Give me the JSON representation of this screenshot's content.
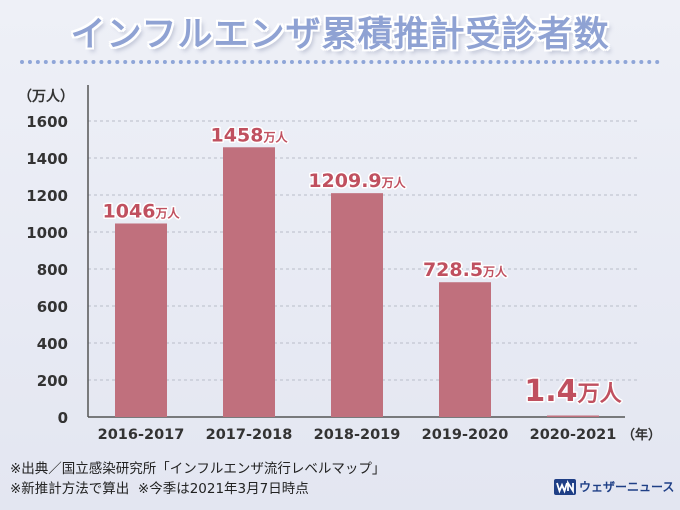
{
  "title": "インフルエンザ累積推計受診者数",
  "chart_data": {
    "type": "bar",
    "unit_label": "（万人）",
    "x_unit_label": "（年）",
    "categories": [
      "2016-2017",
      "2017-2018",
      "2018-2019",
      "2019-2020",
      "2020-2021"
    ],
    "values": [
      1046,
      1458,
      1209.9,
      728.5,
      1.4
    ],
    "value_labels": [
      "1046",
      "1458",
      "1209.9",
      "728.5",
      "1.4"
    ],
    "value_suffix": "万人",
    "ylim": [
      0,
      1600
    ],
    "yticks": [
      0,
      200,
      400,
      600,
      800,
      1000,
      1200,
      1400,
      1600
    ],
    "grid": true,
    "bar_color": "#c0707d",
    "label_color": "#c0505f"
  },
  "notes": {
    "line1": "※出典／国立感染研究所「インフルエンザ流行レベルマップ」",
    "line2": "※新推計方法で算出  ※今季は2021年3月7日時点"
  },
  "logo": {
    "text": "ウェザーニュース",
    "icon": "wn-logo-icon",
    "color": "#1f3f86"
  }
}
